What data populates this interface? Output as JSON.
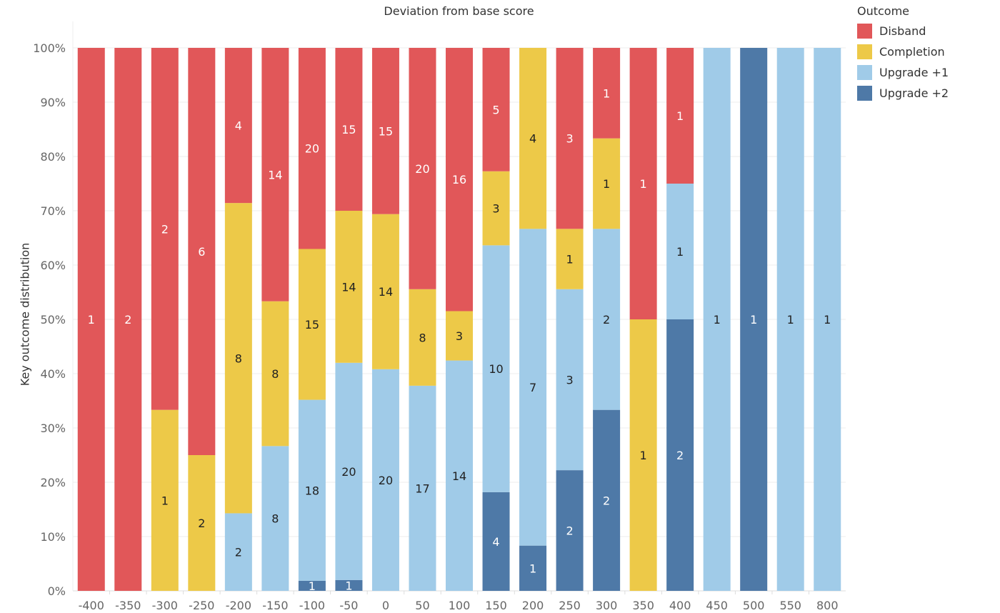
{
  "chart_data": {
    "type": "bar",
    "stacked": "percent",
    "title": "Deviation from base score",
    "xlabel": "",
    "ylabel": "Key outcome distribution",
    "ylim": [
      0,
      100
    ],
    "yticks": [
      "0%",
      "10%",
      "20%",
      "30%",
      "40%",
      "50%",
      "60%",
      "70%",
      "80%",
      "90%",
      "100%"
    ],
    "grid": true,
    "legend_title": "Outcome",
    "legend_position": "top-right",
    "categories": [
      "-400",
      "-350",
      "-300",
      "-250",
      "-200",
      "-150",
      "-100",
      "-50",
      "0",
      "50",
      "100",
      "150",
      "200",
      "250",
      "300",
      "350",
      "400",
      "450",
      "500",
      "550",
      "800"
    ],
    "series": [
      {
        "name": "Upgrade +2",
        "color": "#4e79a7",
        "label_color": "#ffffff",
        "values": [
          0,
          0,
          0,
          0,
          0,
          0,
          1,
          1,
          0,
          0,
          0,
          4,
          1,
          2,
          2,
          0,
          2,
          0,
          1,
          0,
          0
        ]
      },
      {
        "name": "Upgrade +1",
        "color": "#a0cbe8",
        "label_color": "#222222",
        "values": [
          0,
          0,
          0,
          0,
          2,
          8,
          18,
          20,
          20,
          17,
          14,
          10,
          7,
          3,
          2,
          0,
          1,
          1,
          0,
          1,
          1
        ]
      },
      {
        "name": "Completion",
        "color": "#edc948",
        "label_color": "#222222",
        "values": [
          0,
          0,
          1,
          2,
          8,
          8,
          15,
          14,
          14,
          8,
          3,
          3,
          4,
          1,
          1,
          1,
          0,
          0,
          0,
          0,
          0
        ]
      },
      {
        "name": "Disband",
        "color": "#e15759",
        "label_color": "#ffffff",
        "values": [
          1,
          2,
          2,
          6,
          4,
          14,
          20,
          15,
          15,
          20,
          16,
          5,
          0,
          3,
          1,
          1,
          1,
          0,
          0,
          0,
          0
        ]
      }
    ],
    "legend_order": [
      "Disband",
      "Completion",
      "Upgrade +1",
      "Upgrade +2"
    ]
  }
}
